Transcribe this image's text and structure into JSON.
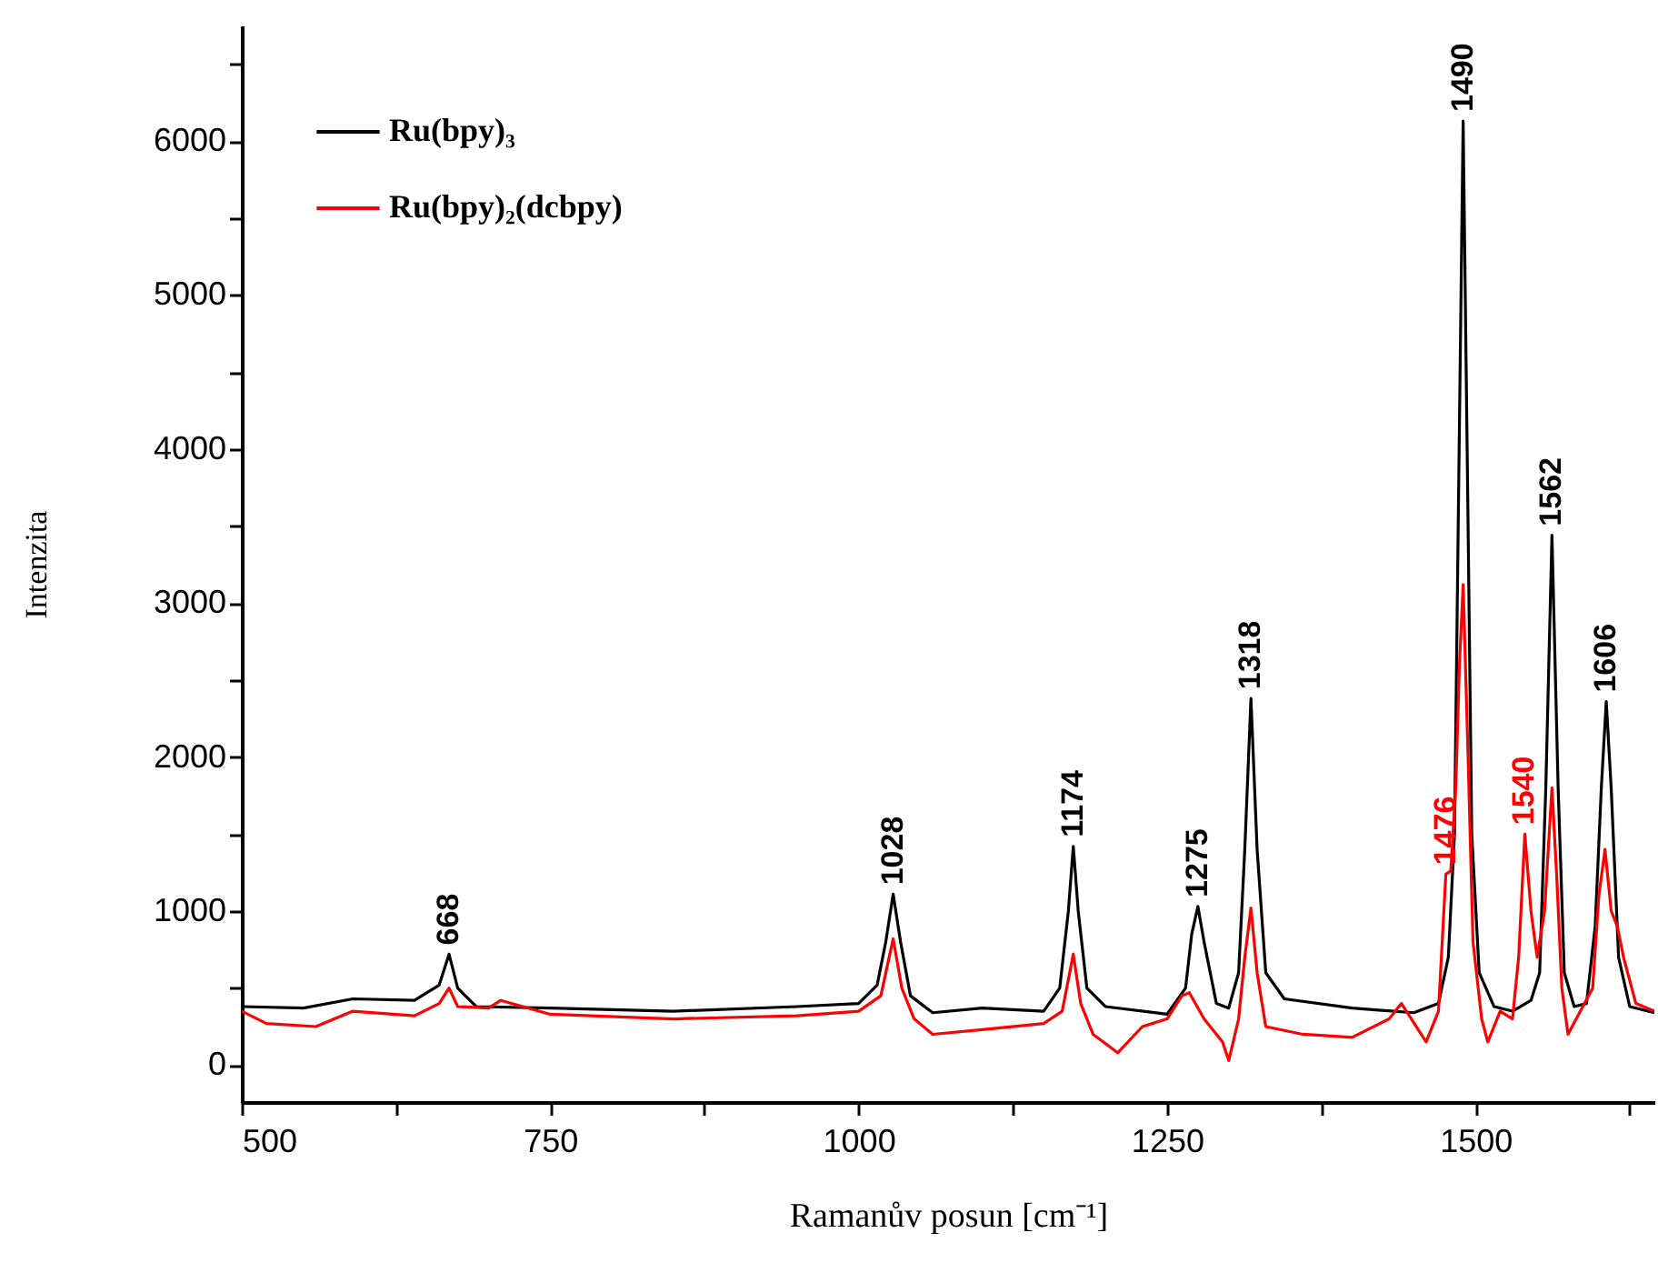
{
  "chart_data": {
    "type": "line",
    "xlabel": "Ramanův posun [cm⁻¹]",
    "ylabel": "Intenzita",
    "xlim": [
      500,
      1645
    ],
    "ylim": [
      -240,
      6750
    ],
    "xticks": [
      500,
      {
        "value": 625,
        "label": null
      },
      750,
      {
        "value": 875,
        "label": null
      },
      1000,
      {
        "value": 1125,
        "label": null
      },
      1250,
      {
        "value": 1375,
        "label": null
      },
      1500,
      {
        "value": 1625,
        "label": null
      }
    ],
    "yticks": [
      0,
      {
        "value": 500,
        "label": null
      },
      1000,
      {
        "value": 1500,
        "label": null
      },
      2000,
      {
        "value": 2500,
        "label": null
      },
      3000,
      {
        "value": 3500,
        "label": null
      },
      4000,
      {
        "value": 4500,
        "label": null
      },
      5000,
      {
        "value": 5500,
        "label": null
      },
      6000,
      {
        "value": 6500,
        "label": null
      }
    ],
    "legend": "top left",
    "annotations": [
      {
        "text": "668",
        "x": 668,
        "y": 720
      },
      {
        "text": "1028",
        "x": 1028,
        "y": 1110
      },
      {
        "text": "1174",
        "x": 1174,
        "y": 1420
      },
      {
        "text": "1275",
        "x": 1275,
        "y": 1030
      },
      {
        "text": "1318",
        "x": 1318,
        "y": 2380
      },
      {
        "text": "1490",
        "x": 1490,
        "y": 6130
      },
      {
        "text": "1562",
        "x": 1562,
        "y": 3440
      },
      {
        "text": "1606",
        "x": 1606,
        "y": 2360
      },
      {
        "text": "1476",
        "x": 1476,
        "y": 1240
      },
      {
        "text": "1540",
        "x": 1540,
        "y": 1500
      }
    ],
    "series": [
      {
        "name": "Ru(bpy)₃",
        "color": "#000000",
        "x": [
          500,
          550,
          590,
          640,
          660,
          668,
          675,
          690,
          750,
          850,
          950,
          1000,
          1015,
          1022,
          1028,
          1034,
          1042,
          1060,
          1100,
          1150,
          1163,
          1170,
          1174,
          1178,
          1185,
          1200,
          1250,
          1265,
          1270,
          1275,
          1280,
          1290,
          1300,
          1308,
          1313,
          1318,
          1323,
          1330,
          1345,
          1400,
          1450,
          1470,
          1478,
          1483,
          1486,
          1490,
          1494,
          1497,
          1503,
          1515,
          1530,
          1545,
          1552,
          1557,
          1562,
          1567,
          1572,
          1580,
          1590,
          1597,
          1602,
          1606,
          1610,
          1616,
          1625,
          1645
        ],
        "values": [
          380,
          370,
          430,
          420,
          520,
          720,
          500,
          380,
          370,
          350,
          380,
          400,
          520,
          800,
          1110,
          800,
          450,
          340,
          370,
          350,
          500,
          1000,
          1420,
          1000,
          500,
          380,
          330,
          500,
          850,
          1030,
          800,
          400,
          370,
          600,
          1400,
          2380,
          1400,
          600,
          430,
          370,
          340,
          400,
          700,
          1500,
          3500,
          6130,
          3500,
          1500,
          600,
          380,
          350,
          420,
          600,
          1800,
          3440,
          1800,
          600,
          380,
          400,
          900,
          1800,
          2360,
          1800,
          700,
          380,
          340
        ]
      },
      {
        "name": "Ru(bpy)₂(dcbpy)",
        "color": "#ff0000",
        "x": [
          500,
          520,
          560,
          590,
          640,
          660,
          668,
          675,
          700,
          710,
          750,
          850,
          950,
          1000,
          1018,
          1028,
          1035,
          1045,
          1060,
          1100,
          1150,
          1165,
          1174,
          1180,
          1190,
          1210,
          1230,
          1250,
          1262,
          1268,
          1280,
          1295,
          1300,
          1308,
          1313,
          1318,
          1323,
          1330,
          1360,
          1400,
          1430,
          1440,
          1460,
          1470,
          1476,
          1480,
          1484,
          1487,
          1490,
          1494,
          1498,
          1505,
          1510,
          1520,
          1530,
          1535,
          1540,
          1545,
          1550,
          1556,
          1562,
          1566,
          1570,
          1575,
          1585,
          1595,
          1600,
          1605,
          1610,
          1615,
          1620,
          1630,
          1645
        ],
        "values": [
          350,
          270,
          250,
          350,
          320,
          400,
          500,
          380,
          370,
          420,
          330,
          300,
          320,
          350,
          450,
          820,
          500,
          300,
          200,
          230,
          270,
          350,
          720,
          400,
          200,
          80,
          250,
          300,
          450,
          470,
          300,
          150,
          30,
          300,
          700,
          1020,
          600,
          250,
          200,
          180,
          300,
          400,
          150,
          350,
          1240,
          1260,
          1800,
          2600,
          3120,
          2000,
          800,
          300,
          150,
          350,
          300,
          700,
          1500,
          1000,
          700,
          1000,
          1800,
          1200,
          500,
          200,
          350,
          500,
          1100,
          1400,
          1000,
          900,
          700,
          400,
          350
        ]
      }
    ]
  }
}
